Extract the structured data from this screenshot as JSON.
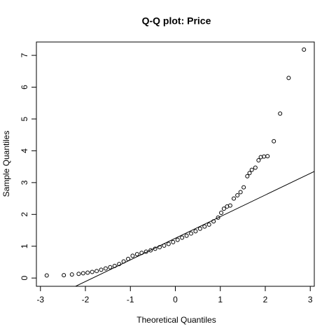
{
  "chart_data": {
    "type": "scatter",
    "title": "Q-Q plot: Price",
    "xlabel": "Theoretical Quantiles",
    "ylabel": "Sample Quantiles",
    "x": [
      -2.86,
      -2.48,
      -2.3,
      -2.15,
      -2.05,
      -1.95,
      -1.85,
      -1.75,
      -1.65,
      -1.55,
      -1.45,
      -1.35,
      -1.25,
      -1.15,
      -1.05,
      -0.95,
      -0.85,
      -0.75,
      -0.65,
      -0.55,
      -0.45,
      -0.35,
      -0.25,
      -0.15,
      -0.05,
      0.05,
      0.15,
      0.25,
      0.35,
      0.45,
      0.55,
      0.65,
      0.75,
      0.85,
      0.95,
      1.02,
      1.08,
      1.15,
      1.22,
      1.3,
      1.38,
      1.45,
      1.52,
      1.6,
      1.65,
      1.7,
      1.78,
      1.85,
      1.9,
      1.97,
      2.05,
      2.19,
      2.33,
      2.52,
      2.86
    ],
    "values": [
      0.08,
      0.09,
      0.11,
      0.13,
      0.15,
      0.17,
      0.19,
      0.22,
      0.26,
      0.3,
      0.34,
      0.38,
      0.44,
      0.52,
      0.6,
      0.7,
      0.75,
      0.79,
      0.83,
      0.87,
      0.92,
      0.97,
      1.02,
      1.07,
      1.13,
      1.2,
      1.27,
      1.33,
      1.4,
      1.47,
      1.55,
      1.62,
      1.68,
      1.78,
      1.9,
      2.05,
      2.18,
      2.25,
      2.28,
      2.5,
      2.6,
      2.7,
      2.85,
      3.2,
      3.3,
      3.4,
      3.47,
      3.7,
      3.8,
      3.82,
      3.83,
      4.3,
      5.17,
      6.29,
      7.18
    ],
    "color": "#000000",
    "reference_line": {
      "intercept": 1.25,
      "slope": 0.68
    },
    "xlim": [
      -3.09,
      3.09
    ],
    "ylim": [
      -0.26,
      7.42
    ],
    "xticks": [
      -3,
      -2,
      -1,
      0,
      1,
      2,
      3
    ],
    "yticks": [
      0,
      1,
      2,
      3,
      4,
      5,
      6,
      7
    ]
  }
}
